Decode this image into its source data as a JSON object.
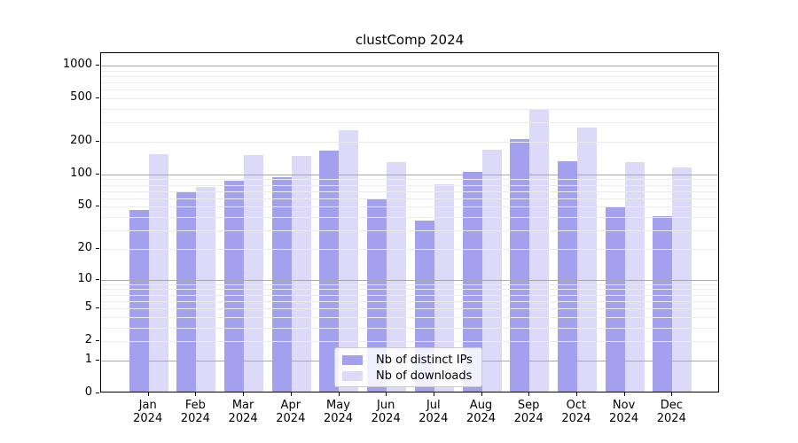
{
  "chart_data": {
    "type": "bar",
    "title": "clustComp 2024",
    "year_label": "2024",
    "categories": [
      "Jan",
      "Feb",
      "Mar",
      "Apr",
      "May",
      "Jun",
      "Jul",
      "Aug",
      "Sep",
      "Oct",
      "Nov",
      "Dec"
    ],
    "series": [
      {
        "name": "Nb of distinct IPs",
        "color": "#a3a1ee",
        "values": [
          45,
          66,
          84,
          91,
          160,
          58,
          36,
          102,
          205,
          127,
          49,
          39
        ]
      },
      {
        "name": "Nb of downloads",
        "color": "#dcdaf8",
        "values": [
          148,
          74,
          145,
          144,
          245,
          125,
          78,
          164,
          375,
          260,
          125,
          112
        ]
      }
    ],
    "yscale": "log1p",
    "ylim": [
      0,
      1300
    ],
    "ytick_values": [
      0,
      1,
      2,
      5,
      10,
      20,
      50,
      100,
      200,
      500,
      1000
    ],
    "ytick_labels": [
      "0",
      "1",
      "2",
      "5",
      "10",
      "20",
      "50",
      "100",
      "200",
      "500",
      "1000"
    ],
    "minor_grid_values": [
      2,
      3,
      4,
      5,
      6,
      7,
      8,
      9,
      20,
      30,
      40,
      50,
      60,
      70,
      80,
      90,
      200,
      300,
      400,
      500,
      600,
      700,
      800,
      900
    ],
    "major_grid_values": [
      1,
      10,
      100,
      1000
    ],
    "xlabel": "",
    "ylabel": "",
    "grid": "horizontal",
    "legend_position": "lower-center inside plot",
    "colors": {
      "major_grid": "#a8a8a8",
      "minor_grid": "#ebebeb",
      "axis": "#000000",
      "background": "#ffffff"
    }
  }
}
